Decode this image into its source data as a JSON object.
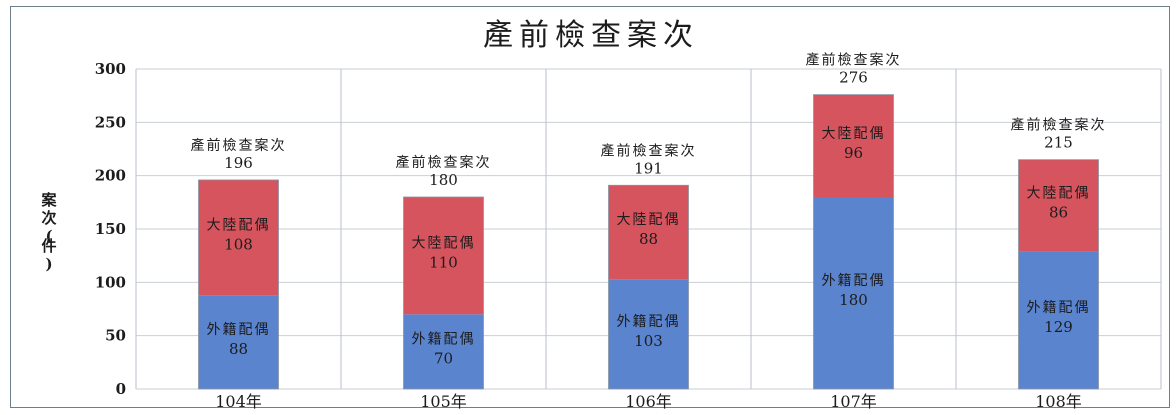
{
  "chart_data": {
    "type": "bar",
    "stacked": true,
    "title": "產前檢查案次",
    "ylabel": "案次(件)",
    "xlabel": "",
    "ylim": [
      0,
      300
    ],
    "yticks": [
      0,
      50,
      100,
      150,
      200,
      250,
      300
    ],
    "categories": [
      "104年",
      "105年",
      "106年",
      "107年",
      "108年"
    ],
    "series": [
      {
        "name": "外籍配偶",
        "values": [
          88,
          70,
          103,
          180,
          129
        ],
        "color": "#5b84cf"
      },
      {
        "name": "大陸配偶",
        "values": [
          108,
          110,
          88,
          96,
          86
        ],
        "color": "#d6545e"
      }
    ],
    "total_label": "產前檢查案次",
    "totals": [
      196,
      180,
      191,
      276,
      215
    ],
    "grid": true,
    "legend": "none"
  }
}
